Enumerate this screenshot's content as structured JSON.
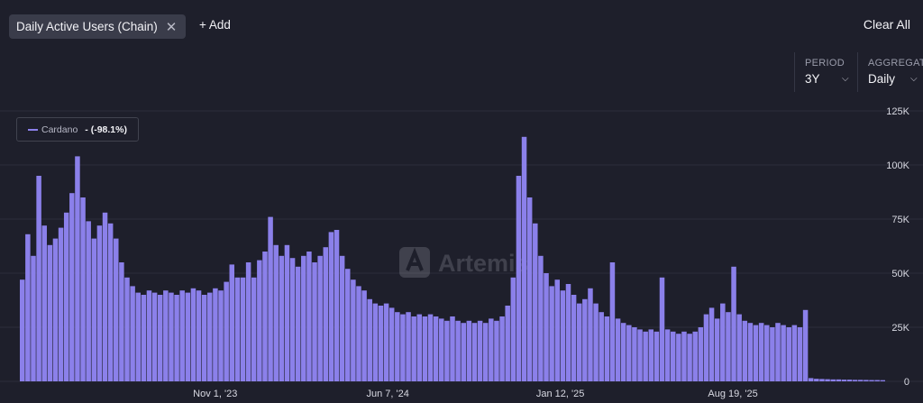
{
  "header": {
    "metric_chip": "Daily Active Users (Chain)",
    "chip_close_icon": "✕",
    "add_label": "+ Add",
    "clear_all_label": "Clear All"
  },
  "controls": {
    "period_label": "PERIOD",
    "period_value": "3Y",
    "aggregate_label": "AGGREGATE",
    "aggregate_value": "Daily"
  },
  "watermark": "Artemis",
  "legend": {
    "name": "Cardano",
    "change": "- (-98.1%)"
  },
  "colors": {
    "series": "#8b80ea",
    "background": "#1e1f2b",
    "grid": "#2c2e3b"
  },
  "chart_data": {
    "type": "bar",
    "title": "",
    "xlabel": "",
    "ylabel": "",
    "ylim": [
      0,
      125000
    ],
    "y_ticks": [
      0,
      25000,
      50000,
      75000,
      100000,
      125000
    ],
    "y_tick_labels": [
      "0",
      "25K",
      "50K",
      "75K",
      "100K",
      "125K"
    ],
    "x_tick_labels": [
      "Nov 1, '23",
      "Jun 7, '24",
      "Jan 12, '25",
      "Aug 19, '25"
    ],
    "x_tick_dates": [
      "2023-11-01",
      "2024-06-07",
      "2025-01-12",
      "2025-08-19"
    ],
    "x_range": [
      "2023-02-26",
      "2026-02-26"
    ],
    "grid": true,
    "legend_position": "top-left",
    "series": [
      {
        "name": "Cardano",
        "aggregation": "daily, shown at weekly resolution (weekly high values)",
        "points": [
          [
            "2023-02-26",
            47000
          ],
          [
            "2023-03-05",
            68000
          ],
          [
            "2023-03-12",
            58000
          ],
          [
            "2023-03-19",
            95000
          ],
          [
            "2023-03-26",
            72000
          ],
          [
            "2023-04-02",
            63000
          ],
          [
            "2023-04-09",
            66000
          ],
          [
            "2023-04-16",
            71000
          ],
          [
            "2023-04-23",
            78000
          ],
          [
            "2023-04-30",
            87000
          ],
          [
            "2023-05-07",
            104000
          ],
          [
            "2023-05-14",
            85000
          ],
          [
            "2023-05-21",
            74000
          ],
          [
            "2023-05-28",
            66000
          ],
          [
            "2023-06-04",
            72000
          ],
          [
            "2023-06-11",
            78000
          ],
          [
            "2023-06-18",
            73000
          ],
          [
            "2023-06-25",
            66000
          ],
          [
            "2023-07-02",
            55000
          ],
          [
            "2023-07-09",
            48000
          ],
          [
            "2023-07-16",
            44000
          ],
          [
            "2023-07-23",
            41000
          ],
          [
            "2023-07-30",
            40000
          ],
          [
            "2023-08-06",
            42000
          ],
          [
            "2023-08-13",
            41000
          ],
          [
            "2023-08-20",
            40000
          ],
          [
            "2023-08-27",
            42000
          ],
          [
            "2023-09-03",
            41000
          ],
          [
            "2023-09-10",
            40000
          ],
          [
            "2023-09-17",
            42000
          ],
          [
            "2023-09-24",
            41000
          ],
          [
            "2023-10-01",
            43000
          ],
          [
            "2023-10-08",
            42000
          ],
          [
            "2023-10-15",
            40000
          ],
          [
            "2023-10-22",
            41000
          ],
          [
            "2023-10-29",
            43000
          ],
          [
            "2023-11-05",
            42000
          ],
          [
            "2023-11-12",
            46000
          ],
          [
            "2023-11-19",
            54000
          ],
          [
            "2023-11-26",
            48000
          ],
          [
            "2023-12-03",
            48000
          ],
          [
            "2023-12-10",
            55000
          ],
          [
            "2023-12-17",
            48000
          ],
          [
            "2023-12-24",
            56000
          ],
          [
            "2023-12-31",
            60000
          ],
          [
            "2024-01-07",
            76000
          ],
          [
            "2024-01-14",
            63000
          ],
          [
            "2024-01-21",
            58000
          ],
          [
            "2024-01-28",
            63000
          ],
          [
            "2024-02-04",
            57000
          ],
          [
            "2024-02-11",
            53000
          ],
          [
            "2024-02-18",
            58000
          ],
          [
            "2024-02-25",
            60000
          ],
          [
            "2024-03-03",
            55000
          ],
          [
            "2024-03-10",
            58000
          ],
          [
            "2024-03-17",
            62000
          ],
          [
            "2024-03-24",
            69000
          ],
          [
            "2024-03-31",
            70000
          ],
          [
            "2024-04-07",
            58000
          ],
          [
            "2024-04-14",
            52000
          ],
          [
            "2024-04-21",
            47000
          ],
          [
            "2024-04-28",
            44000
          ],
          [
            "2024-05-05",
            42000
          ],
          [
            "2024-05-12",
            38000
          ],
          [
            "2024-05-19",
            36000
          ],
          [
            "2024-05-26",
            35000
          ],
          [
            "2024-06-02",
            36000
          ],
          [
            "2024-06-09",
            34000
          ],
          [
            "2024-06-16",
            32000
          ],
          [
            "2024-06-23",
            31000
          ],
          [
            "2024-06-30",
            32000
          ],
          [
            "2024-07-07",
            30000
          ],
          [
            "2024-07-14",
            31000
          ],
          [
            "2024-07-21",
            30000
          ],
          [
            "2024-07-28",
            31000
          ],
          [
            "2024-08-04",
            30000
          ],
          [
            "2024-08-11",
            29000
          ],
          [
            "2024-08-18",
            28000
          ],
          [
            "2024-08-25",
            30000
          ],
          [
            "2024-09-01",
            28000
          ],
          [
            "2024-09-08",
            27000
          ],
          [
            "2024-09-15",
            28000
          ],
          [
            "2024-09-22",
            27000
          ],
          [
            "2024-09-29",
            28000
          ],
          [
            "2024-10-06",
            27000
          ],
          [
            "2024-10-13",
            29000
          ],
          [
            "2024-10-20",
            28000
          ],
          [
            "2024-10-27",
            30000
          ],
          [
            "2024-11-03",
            35000
          ],
          [
            "2024-11-10",
            48000
          ],
          [
            "2024-11-17",
            95000
          ],
          [
            "2024-11-24",
            113000
          ],
          [
            "2024-12-01",
            85000
          ],
          [
            "2024-12-08",
            73000
          ],
          [
            "2024-12-15",
            58000
          ],
          [
            "2024-12-22",
            50000
          ],
          [
            "2024-12-29",
            44000
          ],
          [
            "2025-01-05",
            47000
          ],
          [
            "2025-01-12",
            42000
          ],
          [
            "2025-01-19",
            45000
          ],
          [
            "2025-01-26",
            40000
          ],
          [
            "2025-02-02",
            36000
          ],
          [
            "2025-02-09",
            38000
          ],
          [
            "2025-02-16",
            43000
          ],
          [
            "2025-02-23",
            36000
          ],
          [
            "2025-03-02",
            32000
          ],
          [
            "2025-03-09",
            30000
          ],
          [
            "2025-03-16",
            55000
          ],
          [
            "2025-03-23",
            29000
          ],
          [
            "2025-03-30",
            27000
          ],
          [
            "2025-04-06",
            26000
          ],
          [
            "2025-04-13",
            25000
          ],
          [
            "2025-04-20",
            24000
          ],
          [
            "2025-04-27",
            23000
          ],
          [
            "2025-05-04",
            24000
          ],
          [
            "2025-05-11",
            23000
          ],
          [
            "2025-05-18",
            48000
          ],
          [
            "2025-05-25",
            24000
          ],
          [
            "2025-06-01",
            23000
          ],
          [
            "2025-06-08",
            22000
          ],
          [
            "2025-06-15",
            23000
          ],
          [
            "2025-06-22",
            22000
          ],
          [
            "2025-06-29",
            23000
          ],
          [
            "2025-07-06",
            25000
          ],
          [
            "2025-07-13",
            31000
          ],
          [
            "2025-07-20",
            34000
          ],
          [
            "2025-07-27",
            29000
          ],
          [
            "2025-08-03",
            36000
          ],
          [
            "2025-08-10",
            32000
          ],
          [
            "2025-08-17",
            53000
          ],
          [
            "2025-08-24",
            31000
          ],
          [
            "2025-08-31",
            28000
          ],
          [
            "2025-09-07",
            27000
          ],
          [
            "2025-09-14",
            26000
          ],
          [
            "2025-09-21",
            27000
          ],
          [
            "2025-09-28",
            26000
          ],
          [
            "2025-10-05",
            25000
          ],
          [
            "2025-10-12",
            27000
          ],
          [
            "2025-10-19",
            26000
          ],
          [
            "2025-10-26",
            25000
          ],
          [
            "2025-11-02",
            26000
          ],
          [
            "2025-11-09",
            25000
          ],
          [
            "2025-11-16",
            33000
          ],
          [
            "2025-11-23",
            1500
          ],
          [
            "2025-11-30",
            1200
          ],
          [
            "2025-12-07",
            1100
          ],
          [
            "2025-12-14",
            1000
          ],
          [
            "2025-12-21",
            900
          ],
          [
            "2025-12-28",
            900
          ],
          [
            "2026-01-04",
            800
          ],
          [
            "2026-01-11",
            800
          ],
          [
            "2026-01-18",
            700
          ],
          [
            "2026-01-25",
            700
          ],
          [
            "2026-02-01",
            650
          ],
          [
            "2026-02-08",
            600
          ],
          [
            "2026-02-15",
            600
          ],
          [
            "2026-02-22",
            550
          ]
        ]
      }
    ]
  }
}
